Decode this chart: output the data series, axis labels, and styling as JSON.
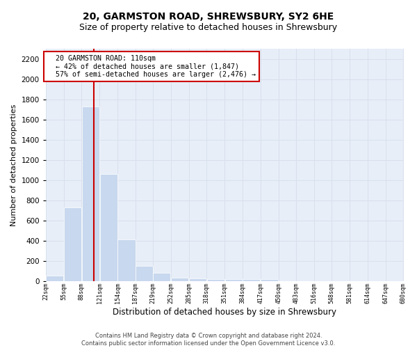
{
  "title": "20, GARMSTON ROAD, SHREWSBURY, SY2 6HE",
  "subtitle": "Size of property relative to detached houses in Shrewsbury",
  "xlabel": "Distribution of detached houses by size in Shrewsbury",
  "ylabel": "Number of detached properties",
  "footer_line1": "Contains HM Land Registry data © Crown copyright and database right 2024.",
  "footer_line2": "Contains public sector information licensed under the Open Government Licence v3.0.",
  "annotation_title": "20 GARMSTON ROAD: 110sqm",
  "annotation_line1": "← 42% of detached houses are smaller (1,847)",
  "annotation_line2": "57% of semi-detached houses are larger (2,476) →",
  "bar_left_edges": [
    22,
    55,
    88,
    121,
    154,
    187,
    219,
    252,
    285,
    318,
    351,
    384,
    417,
    450,
    483,
    516,
    548,
    581,
    614,
    647
  ],
  "bar_widths": [
    33,
    33,
    33,
    33,
    33,
    32,
    33,
    33,
    33,
    33,
    33,
    33,
    33,
    33,
    33,
    32,
    33,
    33,
    33,
    33
  ],
  "bar_heights": [
    50,
    730,
    1730,
    1060,
    410,
    150,
    80,
    35,
    25,
    20,
    20,
    15,
    20,
    0,
    0,
    0,
    0,
    0,
    0,
    0
  ],
  "bar_color": "#c8d8ee",
  "vline_color": "#cc0000",
  "vline_x": 110,
  "ylim": [
    0,
    2300
  ],
  "yticks": [
    0,
    200,
    400,
    600,
    800,
    1000,
    1200,
    1400,
    1600,
    1800,
    2000,
    2200
  ],
  "xtick_labels": [
    "22sqm",
    "55sqm",
    "88sqm",
    "121sqm",
    "154sqm",
    "187sqm",
    "219sqm",
    "252sqm",
    "285sqm",
    "318sqm",
    "351sqm",
    "384sqm",
    "417sqm",
    "450sqm",
    "483sqm",
    "516sqm",
    "548sqm",
    "581sqm",
    "614sqm",
    "647sqm",
    "680sqm"
  ],
  "grid_color": "#d8e0ec",
  "bg_color": "#e8eef8",
  "fig_bg_color": "#ffffff",
  "title_fontsize": 10,
  "subtitle_fontsize": 9,
  "annotation_box_color": "#cc0000",
  "ylabel_fontsize": 8,
  "xlabel_fontsize": 8.5
}
